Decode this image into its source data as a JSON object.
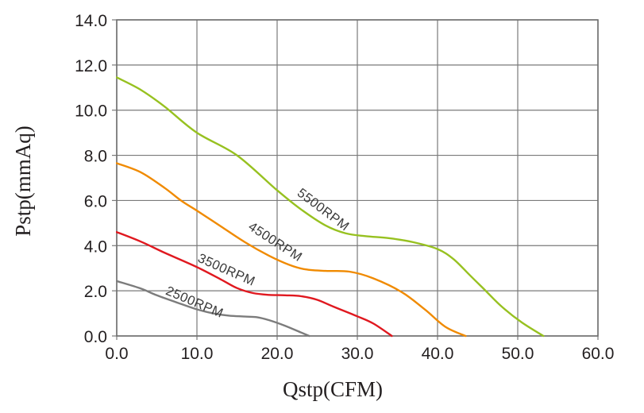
{
  "chart_data": {
    "type": "line",
    "title": "",
    "xlabel": "Qstp(CFM)",
    "ylabel": "Pstp(mmAq)",
    "xlim": [
      0,
      60
    ],
    "ylim": [
      0,
      14
    ],
    "xticks": [
      0,
      10,
      20,
      30,
      40,
      50,
      60
    ],
    "yticks": [
      0,
      2,
      4,
      6,
      8,
      10,
      12,
      14
    ],
    "tick_decimals": 1,
    "grid": true,
    "grid_color": "#7a7a7a",
    "border_color": "#6f6f6f",
    "text_color": "#231f20",
    "curve_label_color": "#3a3a3a",
    "legend_position": "labels-along-curves",
    "series": [
      {
        "name": "2500RPM",
        "color": "#7c7c7c",
        "x": [
          0,
          3,
          5,
          8,
          10,
          12,
          14,
          16,
          17.5,
          19,
          21,
          23,
          24
        ],
        "y": [
          2.43,
          2.1,
          1.8,
          1.42,
          1.18,
          1.0,
          0.9,
          0.86,
          0.83,
          0.7,
          0.45,
          0.15,
          0
        ],
        "label": {
          "x": 6.0,
          "y": 1.86,
          "angle": 23
        }
      },
      {
        "name": "3500RPM",
        "color": "#e0181f",
        "x": [
          0,
          3,
          6,
          10,
          13,
          15,
          17,
          19,
          21,
          23,
          25,
          27,
          30,
          32,
          34.3
        ],
        "y": [
          4.6,
          4.18,
          3.68,
          3.05,
          2.5,
          2.12,
          1.9,
          1.82,
          1.8,
          1.76,
          1.6,
          1.3,
          0.87,
          0.55,
          0
        ],
        "label": {
          "x": 10.0,
          "y": 3.31,
          "angle": 24
        }
      },
      {
        "name": "4500RPM",
        "color": "#f08a00",
        "x": [
          0,
          3,
          6,
          8,
          10,
          13,
          16,
          19,
          21.5,
          23.5,
          26,
          29,
          32,
          35.5,
          38.5,
          41,
          43.5
        ],
        "y": [
          7.65,
          7.25,
          6.55,
          6.0,
          5.55,
          4.85,
          4.15,
          3.55,
          3.15,
          2.95,
          2.88,
          2.85,
          2.55,
          1.95,
          1.15,
          0.4,
          0
        ],
        "label": {
          "x": 16.3,
          "y": 4.75,
          "angle": 33
        }
      },
      {
        "name": "5500RPM",
        "color": "#97c120",
        "x": [
          0,
          3,
          6,
          10,
          15,
          20,
          23,
          26,
          28.5,
          31,
          34,
          37,
          40,
          42,
          44,
          46,
          48,
          50.5,
          53.2
        ],
        "y": [
          11.45,
          10.9,
          10.15,
          9.0,
          8.0,
          6.45,
          5.6,
          4.9,
          4.55,
          4.42,
          4.33,
          4.15,
          3.85,
          3.4,
          2.7,
          2.0,
          1.3,
          0.6,
          0
        ],
        "label": {
          "x": 22.4,
          "y": 6.26,
          "angle": 37
        }
      }
    ]
  }
}
